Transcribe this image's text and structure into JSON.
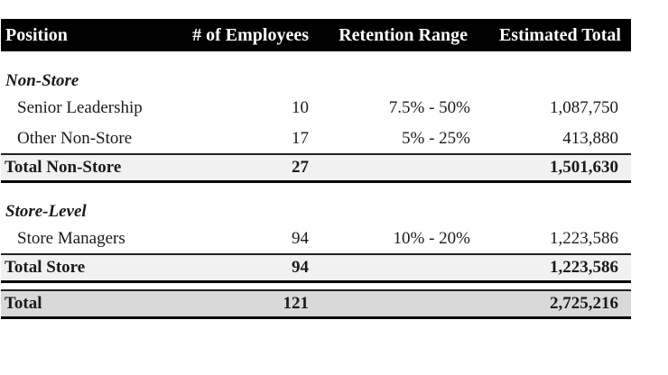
{
  "table": {
    "header": {
      "position": "Position",
      "employees": "# of Employees",
      "retention": "Retention Range",
      "total": "Estimated Total"
    },
    "sections": [
      {
        "name": "Non-Store",
        "rows": [
          {
            "position": "Senior Leadership",
            "employees": "10",
            "retention": "7.5% - 50%",
            "total": "1,087,750"
          },
          {
            "position": "Other Non-Store",
            "employees": "17",
            "retention": "5% - 25%",
            "total": "413,880"
          }
        ],
        "subtotal": {
          "position": "Total Non-Store",
          "employees": "27",
          "retention": "",
          "total": "1,501,630"
        }
      },
      {
        "name": "Store-Level",
        "rows": [
          {
            "position": "Store Managers",
            "employees": "94",
            "retention": "10% - 20%",
            "total": "1,223,586"
          }
        ],
        "subtotal": {
          "position": "Total Store",
          "employees": "94",
          "retention": "",
          "total": "1,223,586"
        }
      }
    ],
    "grand_total": {
      "position": "Total",
      "employees": "121",
      "retention": "",
      "total": "2,725,216"
    },
    "colors": {
      "header_bg": "#000000",
      "header_text": "#ffffff",
      "subtotal_bg": "#f1f1f1",
      "grand_total_bg": "#d9d9d9",
      "body_text": "#1a1a1a"
    }
  }
}
